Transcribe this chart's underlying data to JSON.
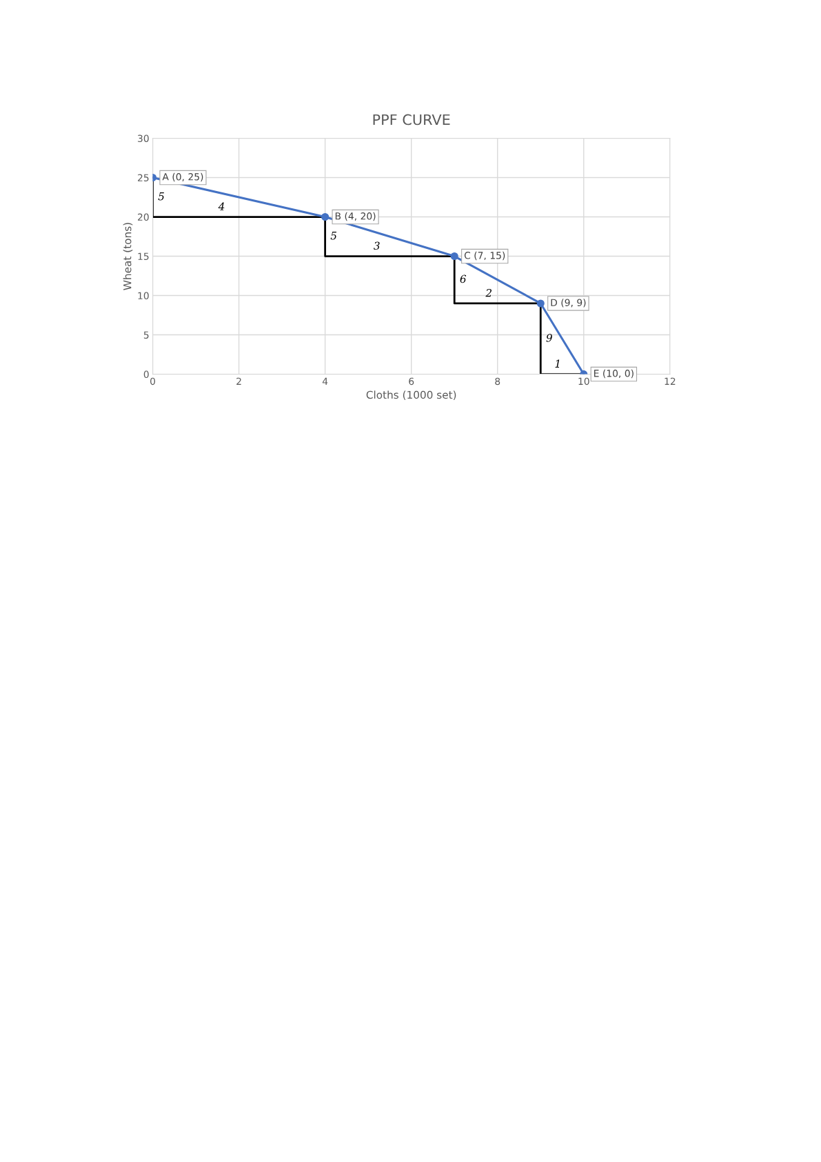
{
  "chart_data": {
    "type": "line",
    "title": "PPF CURVE",
    "xlabel": "Cloths (1000 set)",
    "ylabel": "Wheat (tons)",
    "x": [
      0,
      4,
      7,
      9,
      10
    ],
    "series": [
      {
        "color": "#4472c4",
        "values": [
          25,
          20,
          15,
          9,
          0
        ],
        "marker": "circle",
        "value_labels": [
          "A (0, 25)",
          "B (4, 20)",
          "C (7, 15)",
          "D (9, 9)",
          "E (10, 0)"
        ]
      },
      {
        "color": "#000000",
        "x": [
          0,
          0,
          4,
          4,
          7,
          7,
          9,
          9,
          10
        ],
        "values": [
          25,
          20,
          20,
          15,
          15,
          9,
          9,
          0,
          0
        ],
        "marker": "none"
      }
    ],
    "annotations": [
      "5",
      "4",
      "5",
      "3",
      "6",
      "2",
      "9",
      "1"
    ],
    "xlim": [
      0,
      12
    ],
    "xticks": [
      0,
      2,
      4,
      6,
      8,
      10,
      12
    ],
    "ylim": [
      0,
      30
    ],
    "yticks": [
      0,
      5,
      10,
      15,
      20,
      25,
      30
    ],
    "grid": true,
    "legend": false,
    "line_style": "solid"
  }
}
